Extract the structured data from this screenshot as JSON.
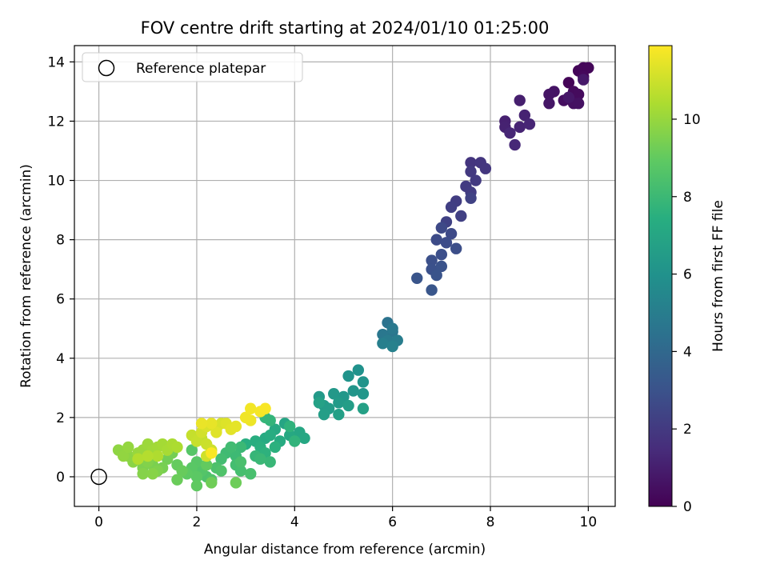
{
  "chart_data": {
    "type": "scatter",
    "title": "FOV centre drift starting at 2024/01/10 01:25:00",
    "xlabel": "Angular distance from reference (arcmin)",
    "ylabel": "Rotation from reference (arcmin)",
    "xlim": [
      -0.5,
      10.55
    ],
    "ylim": [
      -1.0,
      14.55
    ],
    "xticks": [
      0,
      2,
      4,
      6,
      8,
      10
    ],
    "yticks": [
      0,
      2,
      4,
      6,
      8,
      10,
      12,
      14
    ],
    "grid": true,
    "legend": {
      "position": "top-left",
      "entries": [
        "Reference platepar"
      ]
    },
    "reference_point": {
      "x": 0,
      "y": 0
    },
    "colorbar": {
      "label": "Hours from first FF file",
      "colormap": "viridis",
      "range": [
        0,
        11.9
      ],
      "ticks": [
        0,
        2,
        4,
        6,
        8,
        10
      ]
    },
    "points": [
      {
        "x": 9.6,
        "y": 13.3,
        "c": 0.1
      },
      {
        "x": 9.8,
        "y": 13.7,
        "c": 0.15
      },
      {
        "x": 9.9,
        "y": 13.8,
        "c": 0.2
      },
      {
        "x": 10.0,
        "y": 13.8,
        "c": 0.2
      },
      {
        "x": 9.9,
        "y": 13.5,
        "c": 0.25
      },
      {
        "x": 9.7,
        "y": 13.0,
        "c": 0.3
      },
      {
        "x": 9.8,
        "y": 12.9,
        "c": 0.35
      },
      {
        "x": 9.6,
        "y": 12.8,
        "c": 0.4
      },
      {
        "x": 9.5,
        "y": 12.7,
        "c": 0.45
      },
      {
        "x": 9.7,
        "y": 12.6,
        "c": 0.5
      },
      {
        "x": 9.8,
        "y": 12.6,
        "c": 0.55
      },
      {
        "x": 9.3,
        "y": 13.0,
        "c": 0.6
      },
      {
        "x": 9.2,
        "y": 12.9,
        "c": 0.65
      },
      {
        "x": 9.2,
        "y": 12.6,
        "c": 0.7
      },
      {
        "x": 9.6,
        "y": 12.8,
        "c": 0.75
      },
      {
        "x": 9.9,
        "y": 13.4,
        "c": 0.8
      },
      {
        "x": 8.6,
        "y": 12.7,
        "c": 1.0
      },
      {
        "x": 8.3,
        "y": 12.0,
        "c": 1.05
      },
      {
        "x": 8.3,
        "y": 11.8,
        "c": 1.1
      },
      {
        "x": 8.7,
        "y": 12.2,
        "c": 1.15
      },
      {
        "x": 8.6,
        "y": 11.8,
        "c": 1.2
      },
      {
        "x": 8.8,
        "y": 11.9,
        "c": 1.25
      },
      {
        "x": 8.4,
        "y": 11.6,
        "c": 1.3
      },
      {
        "x": 8.5,
        "y": 11.2,
        "c": 1.35
      },
      {
        "x": 7.6,
        "y": 10.6,
        "c": 1.8
      },
      {
        "x": 7.8,
        "y": 10.6,
        "c": 1.85
      },
      {
        "x": 7.9,
        "y": 10.4,
        "c": 1.9
      },
      {
        "x": 7.6,
        "y": 10.3,
        "c": 1.95
      },
      {
        "x": 7.7,
        "y": 10.0,
        "c": 2.0
      },
      {
        "x": 7.5,
        "y": 9.8,
        "c": 2.05
      },
      {
        "x": 7.6,
        "y": 9.6,
        "c": 2.1
      },
      {
        "x": 7.3,
        "y": 9.3,
        "c": 2.15
      },
      {
        "x": 7.2,
        "y": 9.1,
        "c": 2.2
      },
      {
        "x": 7.4,
        "y": 8.8,
        "c": 2.25
      },
      {
        "x": 7.1,
        "y": 8.6,
        "c": 2.3
      },
      {
        "x": 7.6,
        "y": 9.4,
        "c": 2.35
      },
      {
        "x": 7.0,
        "y": 8.4,
        "c": 2.6
      },
      {
        "x": 7.2,
        "y": 8.2,
        "c": 2.65
      },
      {
        "x": 6.9,
        "y": 8.0,
        "c": 2.7
      },
      {
        "x": 7.1,
        "y": 7.9,
        "c": 2.75
      },
      {
        "x": 7.3,
        "y": 7.7,
        "c": 2.8
      },
      {
        "x": 7.0,
        "y": 7.5,
        "c": 2.85
      },
      {
        "x": 6.8,
        "y": 7.3,
        "c": 2.9
      },
      {
        "x": 6.8,
        "y": 7.0,
        "c": 2.95
      },
      {
        "x": 7.0,
        "y": 7.1,
        "c": 3.0
      },
      {
        "x": 6.9,
        "y": 6.8,
        "c": 3.05
      },
      {
        "x": 6.5,
        "y": 6.7,
        "c": 3.1
      },
      {
        "x": 6.8,
        "y": 6.3,
        "c": 3.15
      },
      {
        "x": 5.9,
        "y": 5.2,
        "c": 4.5
      },
      {
        "x": 6.0,
        "y": 4.9,
        "c": 4.6
      },
      {
        "x": 5.8,
        "y": 4.8,
        "c": 4.7
      },
      {
        "x": 6.0,
        "y": 5.0,
        "c": 4.8
      },
      {
        "x": 5.9,
        "y": 4.6,
        "c": 4.9
      },
      {
        "x": 6.1,
        "y": 4.6,
        "c": 5.0
      },
      {
        "x": 5.8,
        "y": 4.5,
        "c": 5.1
      },
      {
        "x": 6.0,
        "y": 4.4,
        "c": 5.2
      },
      {
        "x": 5.3,
        "y": 3.6,
        "c": 6.0
      },
      {
        "x": 5.1,
        "y": 3.4,
        "c": 6.05
      },
      {
        "x": 5.4,
        "y": 3.2,
        "c": 6.1
      },
      {
        "x": 5.2,
        "y": 2.9,
        "c": 6.15
      },
      {
        "x": 5.4,
        "y": 2.8,
        "c": 6.2
      },
      {
        "x": 5.0,
        "y": 2.7,
        "c": 6.25
      },
      {
        "x": 4.8,
        "y": 2.8,
        "c": 6.3
      },
      {
        "x": 4.5,
        "y": 2.7,
        "c": 6.35
      },
      {
        "x": 4.9,
        "y": 2.5,
        "c": 6.4
      },
      {
        "x": 4.6,
        "y": 2.4,
        "c": 6.45
      },
      {
        "x": 4.7,
        "y": 2.3,
        "c": 6.5
      },
      {
        "x": 5.1,
        "y": 2.4,
        "c": 6.55
      },
      {
        "x": 4.6,
        "y": 2.1,
        "c": 6.6
      },
      {
        "x": 4.9,
        "y": 2.1,
        "c": 6.65
      },
      {
        "x": 5.4,
        "y": 2.3,
        "c": 6.7
      },
      {
        "x": 4.5,
        "y": 2.5,
        "c": 6.75
      },
      {
        "x": 3.8,
        "y": 1.8,
        "c": 7.0
      },
      {
        "x": 4.1,
        "y": 1.5,
        "c": 7.05
      },
      {
        "x": 4.2,
        "y": 1.3,
        "c": 7.1
      },
      {
        "x": 3.9,
        "y": 1.4,
        "c": 7.15
      },
      {
        "x": 3.6,
        "y": 1.6,
        "c": 7.2
      },
      {
        "x": 3.4,
        "y": 1.3,
        "c": 7.25
      },
      {
        "x": 3.7,
        "y": 1.2,
        "c": 7.3
      },
      {
        "x": 3.5,
        "y": 1.4,
        "c": 7.35
      },
      {
        "x": 3.2,
        "y": 1.2,
        "c": 7.4
      },
      {
        "x": 3.0,
        "y": 1.1,
        "c": 7.45
      },
      {
        "x": 3.3,
        "y": 1.0,
        "c": 7.5
      },
      {
        "x": 3.6,
        "y": 1.0,
        "c": 7.55
      },
      {
        "x": 3.4,
        "y": 0.8,
        "c": 7.6
      },
      {
        "x": 3.9,
        "y": 1.7,
        "c": 7.65
      },
      {
        "x": 4.0,
        "y": 1.2,
        "c": 7.7
      },
      {
        "x": 3.5,
        "y": 1.9,
        "c": 7.75
      },
      {
        "x": 3.4,
        "y": 2.0,
        "c": 7.8
      },
      {
        "x": 3.2,
        "y": 0.7,
        "c": 7.85
      },
      {
        "x": 3.5,
        "y": 0.5,
        "c": 7.9
      },
      {
        "x": 3.3,
        "y": 0.6,
        "c": 7.95
      },
      {
        "x": 2.9,
        "y": 1.0,
        "c": 8.0
      },
      {
        "x": 2.8,
        "y": 0.7,
        "c": 8.05
      },
      {
        "x": 2.6,
        "y": 0.8,
        "c": 8.1
      },
      {
        "x": 2.7,
        "y": 1.0,
        "c": 8.15
      },
      {
        "x": 2.5,
        "y": 0.6,
        "c": 8.2
      },
      {
        "x": 2.8,
        "y": 0.4,
        "c": 8.25
      },
      {
        "x": 2.9,
        "y": 0.2,
        "c": 8.3
      },
      {
        "x": 3.1,
        "y": 0.1,
        "c": 8.35
      },
      {
        "x": 2.9,
        "y": 0.5,
        "c": 8.4
      },
      {
        "x": 2.4,
        "y": 0.3,
        "c": 8.45
      },
      {
        "x": 2.2,
        "y": 0.0,
        "c": 8.5
      },
      {
        "x": 2.5,
        "y": 0.2,
        "c": 8.55
      },
      {
        "x": 2.3,
        "y": -0.1,
        "c": 8.6
      },
      {
        "x": 2.1,
        "y": 0.2,
        "c": 8.65
      },
      {
        "x": 1.9,
        "y": 0.9,
        "c": 8.7
      },
      {
        "x": 2.0,
        "y": 0.5,
        "c": 8.75
      },
      {
        "x": 1.9,
        "y": 0.3,
        "c": 8.8
      },
      {
        "x": 2.0,
        "y": 0.0,
        "c": 8.85
      },
      {
        "x": 1.8,
        "y": 0.1,
        "c": 8.9
      },
      {
        "x": 2.0,
        "y": -0.3,
        "c": 8.95
      },
      {
        "x": 2.2,
        "y": 0.4,
        "c": 9.0
      },
      {
        "x": 1.6,
        "y": 0.4,
        "c": 9.05
      },
      {
        "x": 1.7,
        "y": 0.2,
        "c": 9.1
      },
      {
        "x": 1.6,
        "y": -0.1,
        "c": 9.15
      },
      {
        "x": 2.8,
        "y": -0.2,
        "c": 9.2
      },
      {
        "x": 2.3,
        "y": -0.2,
        "c": 9.25
      },
      {
        "x": 1.4,
        "y": 0.6,
        "c": 9.3
      },
      {
        "x": 1.5,
        "y": 0.8,
        "c": 9.35
      },
      {
        "x": 1.3,
        "y": 0.3,
        "c": 9.4
      },
      {
        "x": 1.1,
        "y": 0.4,
        "c": 9.45
      },
      {
        "x": 0.9,
        "y": 0.3,
        "c": 9.5
      },
      {
        "x": 1.2,
        "y": 0.2,
        "c": 9.55
      },
      {
        "x": 1.0,
        "y": 0.5,
        "c": 9.6
      },
      {
        "x": 0.9,
        "y": 0.1,
        "c": 9.65
      },
      {
        "x": 1.1,
        "y": 0.1,
        "c": 9.7
      },
      {
        "x": 0.7,
        "y": 0.5,
        "c": 9.75
      },
      {
        "x": 0.6,
        "y": 0.7,
        "c": 9.8
      },
      {
        "x": 0.4,
        "y": 0.9,
        "c": 9.85
      },
      {
        "x": 0.5,
        "y": 0.7,
        "c": 9.9
      },
      {
        "x": 0.6,
        "y": 1.0,
        "c": 9.95
      },
      {
        "x": 0.8,
        "y": 0.8,
        "c": 10.0
      },
      {
        "x": 0.9,
        "y": 0.9,
        "c": 10.05
      },
      {
        "x": 1.0,
        "y": 1.1,
        "c": 10.1
      },
      {
        "x": 1.1,
        "y": 0.9,
        "c": 10.15
      },
      {
        "x": 1.2,
        "y": 1.0,
        "c": 10.2
      },
      {
        "x": 1.3,
        "y": 1.1,
        "c": 10.25
      },
      {
        "x": 1.4,
        "y": 0.9,
        "c": 10.3
      },
      {
        "x": 1.5,
        "y": 1.1,
        "c": 10.35
      },
      {
        "x": 1.6,
        "y": 1.0,
        "c": 10.4
      },
      {
        "x": 1.2,
        "y": 0.7,
        "c": 10.45
      },
      {
        "x": 0.8,
        "y": 0.6,
        "c": 10.5
      },
      {
        "x": 1.0,
        "y": 0.7,
        "c": 10.55
      },
      {
        "x": 2.1,
        "y": 1.3,
        "c": 10.8
      },
      {
        "x": 1.9,
        "y": 1.4,
        "c": 10.85
      },
      {
        "x": 2.0,
        "y": 1.2,
        "c": 10.9
      },
      {
        "x": 2.2,
        "y": 1.1,
        "c": 10.95
      },
      {
        "x": 2.3,
        "y": 0.9,
        "c": 11.0
      },
      {
        "x": 2.2,
        "y": 0.7,
        "c": 11.05
      },
      {
        "x": 2.1,
        "y": 1.5,
        "c": 11.1
      },
      {
        "x": 2.4,
        "y": 1.6,
        "c": 11.15
      },
      {
        "x": 2.5,
        "y": 1.8,
        "c": 11.2
      },
      {
        "x": 2.2,
        "y": 1.7,
        "c": 11.25
      },
      {
        "x": 2.6,
        "y": 1.8,
        "c": 11.3
      },
      {
        "x": 2.4,
        "y": 1.5,
        "c": 11.35
      },
      {
        "x": 2.7,
        "y": 1.6,
        "c": 11.4
      },
      {
        "x": 2.8,
        "y": 1.7,
        "c": 11.45
      },
      {
        "x": 2.3,
        "y": 1.8,
        "c": 11.5
      },
      {
        "x": 2.1,
        "y": 1.8,
        "c": 11.55
      },
      {
        "x": 3.1,
        "y": 1.9,
        "c": 11.6
      },
      {
        "x": 3.0,
        "y": 2.0,
        "c": 11.65
      },
      {
        "x": 3.1,
        "y": 2.3,
        "c": 11.7
      },
      {
        "x": 3.3,
        "y": 2.2,
        "c": 11.75
      },
      {
        "x": 3.4,
        "y": 2.3,
        "c": 11.8
      },
      {
        "x": 2.3,
        "y": 0.8,
        "c": 11.85
      }
    ]
  }
}
